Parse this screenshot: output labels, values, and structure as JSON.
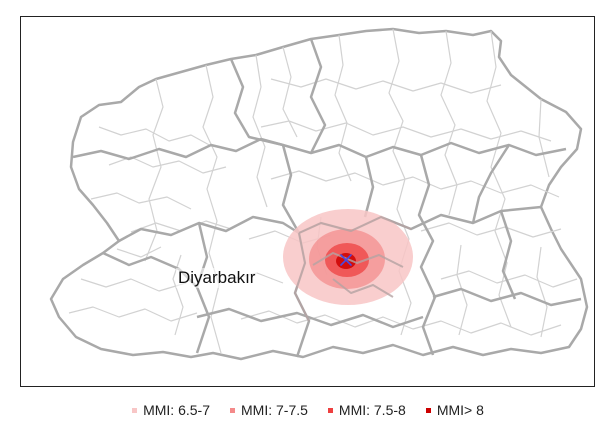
{
  "map": {
    "city_label": "Diyarbakır",
    "epicenter_marker": "x-mark-icon",
    "colors": {
      "province_border": "#a9a9a9",
      "district_border": "#d2d2d2",
      "epicenter_marker": "#4a4ae0"
    }
  },
  "legend": {
    "items": [
      {
        "label": "MMI: 6.5-7",
        "color": "#f8c6c6"
      },
      {
        "label": "MMI: 7-7.5",
        "color": "#f48a8a"
      },
      {
        "label": "MMI: 7.5-8",
        "color": "#ee4040"
      },
      {
        "label": "MMI> 8",
        "color": "#cc0000"
      }
    ]
  }
}
